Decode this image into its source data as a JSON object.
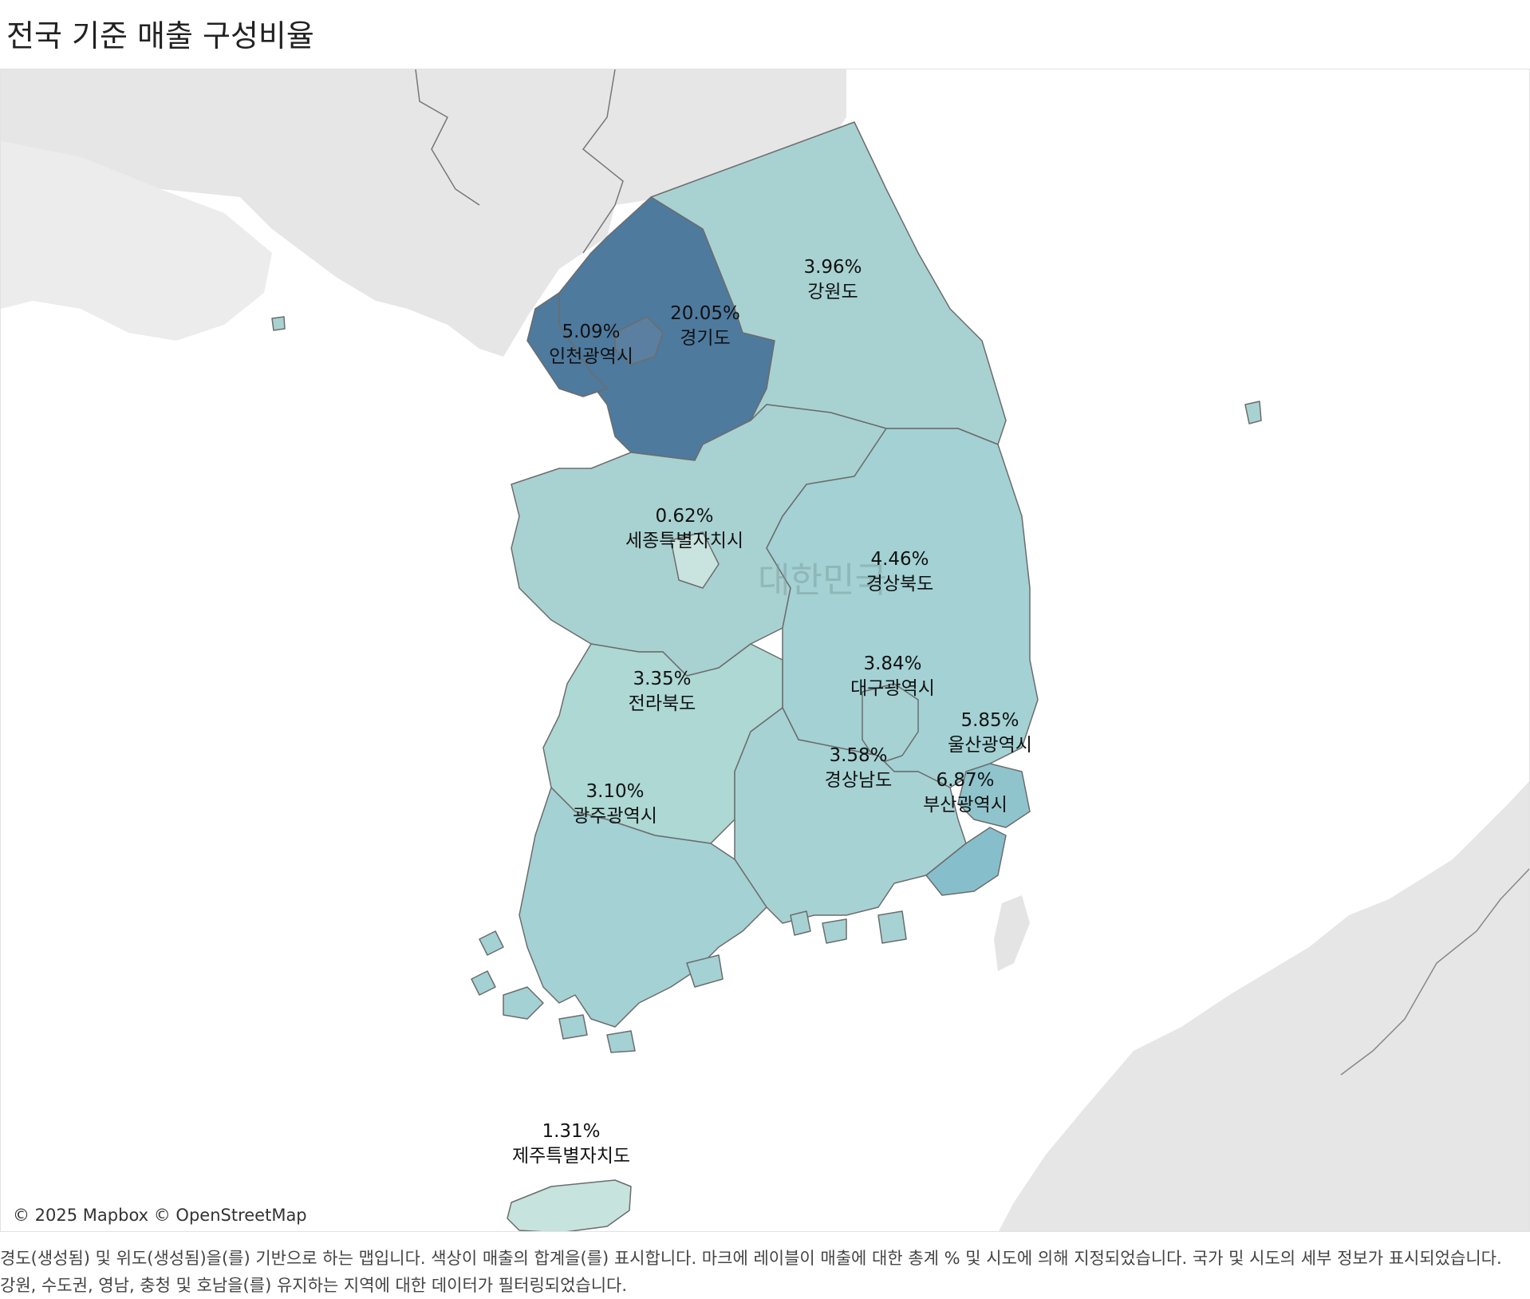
{
  "title": "전국 기준 매출 구성비율",
  "map": {
    "country_label": "대한민국",
    "attribution": "© 2025 Mapbox © OpenStreetMap",
    "color_scale": {
      "low": "#c9e3df",
      "mid": "#a6d2d3",
      "high": "#4e7a9e"
    },
    "regions": [
      {
        "name": "강원도",
        "share": "3.96%",
        "value": 3.96
      },
      {
        "name": "경기도",
        "share": "20.05%",
        "value": 20.05
      },
      {
        "name": "인천광역시",
        "share": "5.09%",
        "value": 5.09
      },
      {
        "name": "세종특별자치시",
        "share": "0.62%",
        "value": 0.62
      },
      {
        "name": "경상북도",
        "share": "4.46%",
        "value": 4.46
      },
      {
        "name": "대구광역시",
        "share": "3.84%",
        "value": 3.84
      },
      {
        "name": "울산광역시",
        "share": "5.85%",
        "value": 5.85
      },
      {
        "name": "전라북도",
        "share": "3.35%",
        "value": 3.35
      },
      {
        "name": "경상남도",
        "share": "3.58%",
        "value": 3.58
      },
      {
        "name": "부산광역시",
        "share": "6.87%",
        "value": 6.87
      },
      {
        "name": "광주광역시",
        "share": "3.10%",
        "value": 3.1
      },
      {
        "name": "제주특별자치도",
        "share": "1.31%",
        "value": 1.31
      }
    ]
  },
  "caption": "경도(생성됨) 및 위도(생성됨)을(를) 기반으로 하는 맵입니다.  색상이 매출의 합계을(를) 표시합니다.  마크에 레이블이 매출에 대한 총계 % 및 시도에 의해 지정되었습니다.  국가 및 시도의 세부 정보가 표시되었습니다. 강원, 수도권, 영남, 충청 및 호남을(를) 유지하는 지역에 대한 데이터가 필터링되었습니다."
}
